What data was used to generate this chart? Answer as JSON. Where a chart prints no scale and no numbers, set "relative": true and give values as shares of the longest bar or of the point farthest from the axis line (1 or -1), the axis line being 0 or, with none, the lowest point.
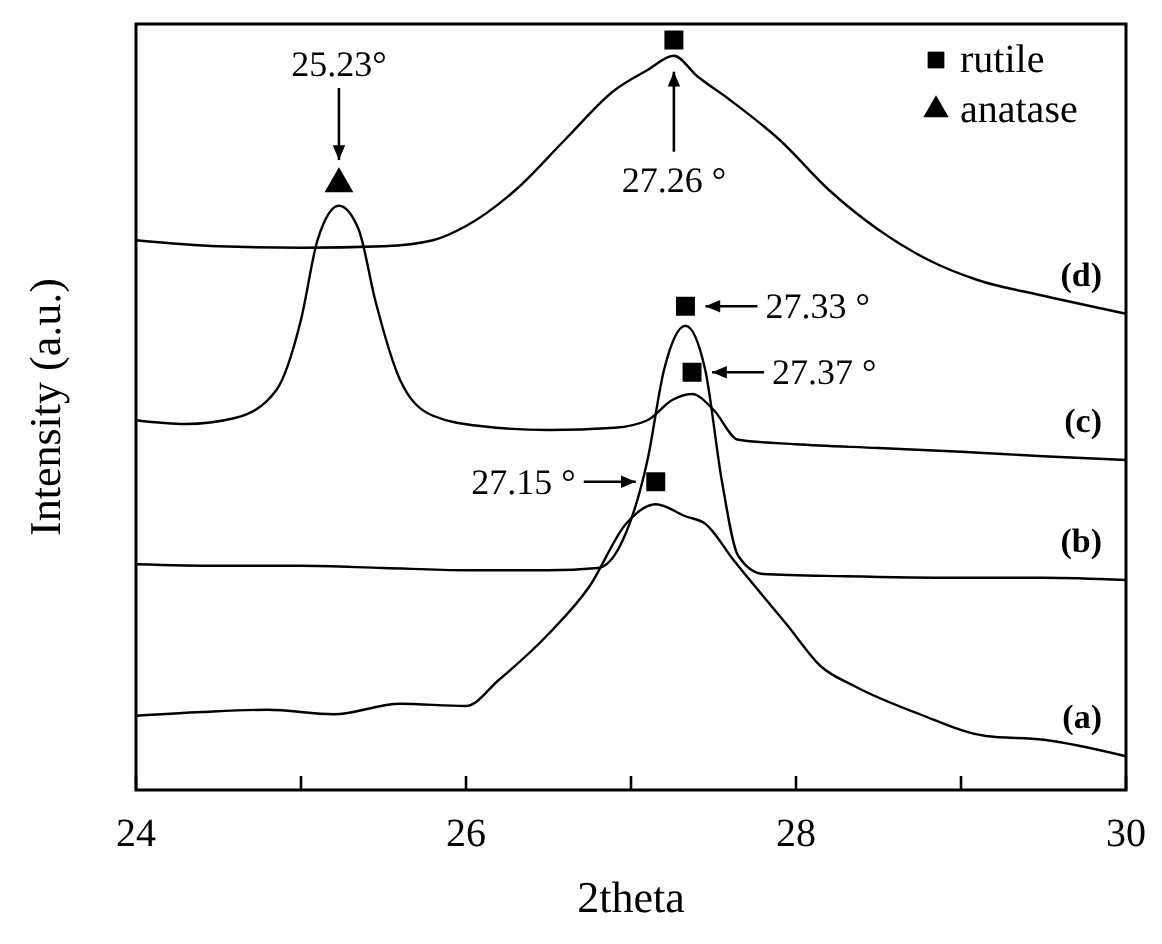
{
  "chart_data": {
    "type": "line",
    "relative": true,
    "xlabel": "2theta",
    "ylabel": "Intensity (a.u.)",
    "xlim": [
      24,
      30
    ],
    "xticks": [
      24,
      {
        "value": 25,
        "label": null
      },
      26,
      {
        "value": 27,
        "label": null
      },
      28,
      {
        "value": 29,
        "label": null
      },
      30
    ],
    "legend": "top right",
    "series": [
      {
        "name": "(a)",
        "color": "#000000",
        "x": [
          24.0,
          24.4,
          24.8,
          25.2,
          25.6,
          26.0,
          26.2,
          26.5,
          26.75,
          26.97,
          27.15,
          27.33,
          27.45,
          27.62,
          27.95,
          28.15,
          28.35,
          28.75,
          29.15,
          29.5,
          30.0
        ],
        "values": [
          0.099,
          0.104,
          0.107,
          0.101,
          0.115,
          0.112,
          0.147,
          0.208,
          0.272,
          0.355,
          0.381,
          0.365,
          0.355,
          0.307,
          0.219,
          0.165,
          0.139,
          0.101,
          0.072,
          0.067,
          0.045
        ]
      },
      {
        "name": "(b)",
        "color": "#000000",
        "x": [
          24.0,
          24.5,
          25.0,
          25.5,
          26.0,
          26.5,
          26.8,
          26.95,
          27.1,
          27.2,
          27.33,
          27.45,
          27.55,
          27.65,
          27.8,
          28.3,
          29.0,
          29.5,
          30.0
        ],
        "values": [
          0.301,
          0.299,
          0.299,
          0.296,
          0.293,
          0.293,
          0.296,
          0.333,
          0.44,
          0.56,
          0.619,
          0.56,
          0.413,
          0.312,
          0.288,
          0.285,
          0.283,
          0.283,
          0.28
        ]
      },
      {
        "name": "(c)",
        "color": "#000000",
        "x": [
          24.0,
          24.3,
          24.6,
          24.85,
          25.0,
          25.1,
          25.23,
          25.35,
          25.45,
          25.6,
          25.8,
          26.1,
          26.5,
          26.9,
          27.1,
          27.25,
          27.37,
          27.5,
          27.65,
          28.0,
          28.5,
          29.0,
          29.5,
          30.0
        ],
        "values": [
          0.493,
          0.488,
          0.496,
          0.533,
          0.627,
          0.733,
          0.779,
          0.747,
          0.653,
          0.547,
          0.499,
          0.485,
          0.48,
          0.483,
          0.493,
          0.52,
          0.528,
          0.507,
          0.467,
          0.461,
          0.456,
          0.451,
          0.445,
          0.44
        ]
      },
      {
        "name": "(d)",
        "color": "#000000",
        "x": [
          24.0,
          24.5,
          25.0,
          25.5,
          25.8,
          26.0,
          26.3,
          26.6,
          26.9,
          27.1,
          27.26,
          27.4,
          27.6,
          27.9,
          28.2,
          28.5,
          28.8,
          29.1,
          29.5,
          30.0
        ],
        "values": [
          0.733,
          0.725,
          0.723,
          0.725,
          0.733,
          0.752,
          0.8,
          0.867,
          0.933,
          0.96,
          0.979,
          0.952,
          0.92,
          0.867,
          0.8,
          0.747,
          0.707,
          0.68,
          0.659,
          0.635
        ]
      },
      {
        "name": "rutile",
        "type": "scatter",
        "marker": "square",
        "color": "#000000",
        "x": [
          27.26,
          27.33,
          27.37,
          27.15
        ],
        "values": [
          1.0,
          0.645,
          0.557,
          0.411
        ]
      },
      {
        "name": "anatase",
        "type": "scatter",
        "marker": "triangle",
        "color": "#000000",
        "x": [
          25.23
        ],
        "values": [
          0.808
        ]
      }
    ],
    "annotations": [
      {
        "text": "25.23°",
        "x": 25.23,
        "y": 0.808
      },
      {
        "text": "27.26 °",
        "x": 27.26,
        "y": 0.979
      },
      {
        "text": "27.33 °",
        "x": 27.33,
        "y": 0.645
      },
      {
        "text": "27.37 °",
        "x": 27.37,
        "y": 0.557
      },
      {
        "text": "27.15 °",
        "x": 27.15,
        "y": 0.411
      }
    ]
  }
}
